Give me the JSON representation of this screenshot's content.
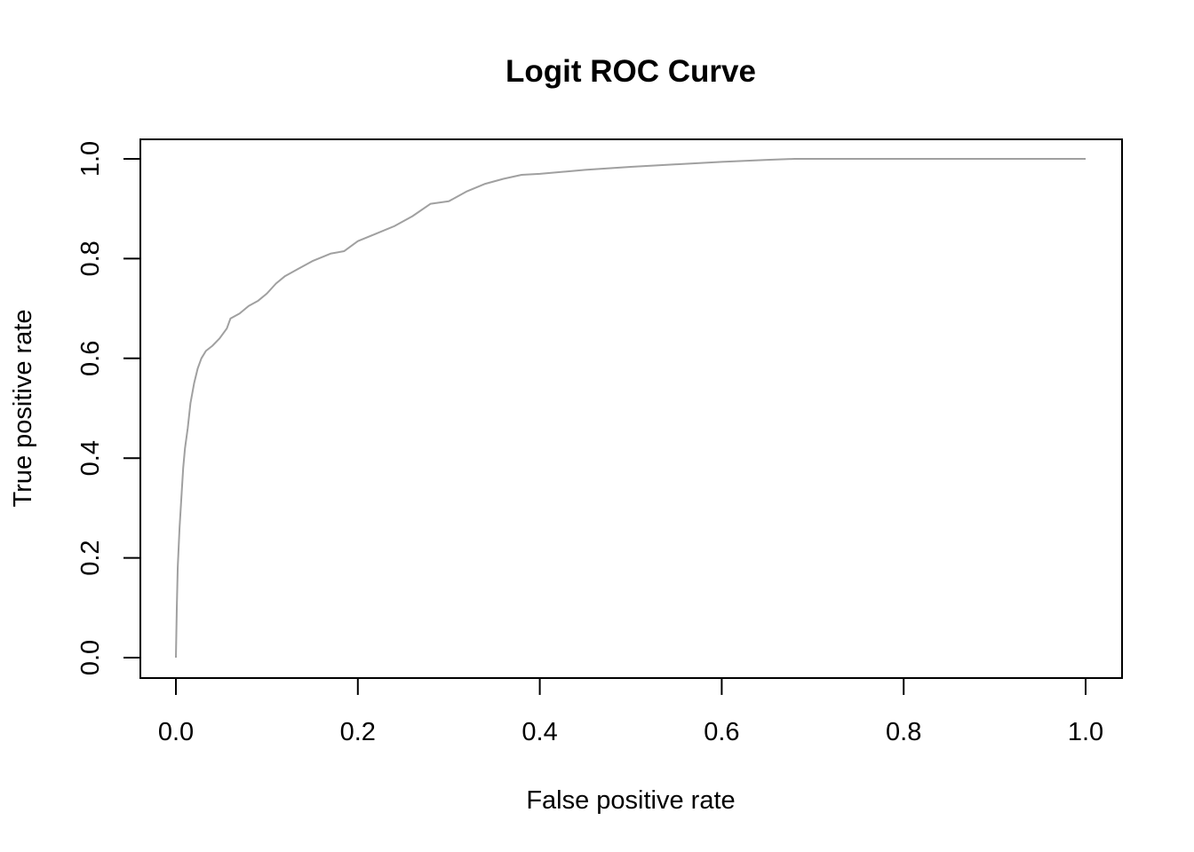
{
  "chart_data": {
    "type": "line",
    "title": "Logit ROC Curve",
    "xlabel": "False positive rate",
    "ylabel": "True positive rate",
    "xlim": [
      0,
      1
    ],
    "ylim": [
      0,
      1
    ],
    "x_ticks": [
      "0.0",
      "0.2",
      "0.4",
      "0.6",
      "0.8",
      "1.0"
    ],
    "y_ticks": [
      "0.0",
      "0.2",
      "0.4",
      "0.6",
      "0.8",
      "1.0"
    ],
    "grid": false,
    "series": [
      {
        "color": "#a0a0a0",
        "points": [
          [
            0.0,
            0.0
          ],
          [
            0.001,
            0.1
          ],
          [
            0.002,
            0.18
          ],
          [
            0.004,
            0.26
          ],
          [
            0.006,
            0.32
          ],
          [
            0.008,
            0.38
          ],
          [
            0.01,
            0.42
          ],
          [
            0.013,
            0.46
          ],
          [
            0.016,
            0.51
          ],
          [
            0.02,
            0.55
          ],
          [
            0.024,
            0.58
          ],
          [
            0.028,
            0.6
          ],
          [
            0.033,
            0.615
          ],
          [
            0.04,
            0.625
          ],
          [
            0.048,
            0.64
          ],
          [
            0.056,
            0.66
          ],
          [
            0.06,
            0.68
          ],
          [
            0.07,
            0.69
          ],
          [
            0.08,
            0.705
          ],
          [
            0.09,
            0.715
          ],
          [
            0.1,
            0.73
          ],
          [
            0.11,
            0.75
          ],
          [
            0.12,
            0.765
          ],
          [
            0.135,
            0.78
          ],
          [
            0.15,
            0.795
          ],
          [
            0.17,
            0.81
          ],
          [
            0.185,
            0.815
          ],
          [
            0.2,
            0.835
          ],
          [
            0.22,
            0.85
          ],
          [
            0.24,
            0.865
          ],
          [
            0.26,
            0.885
          ],
          [
            0.28,
            0.91
          ],
          [
            0.3,
            0.915
          ],
          [
            0.32,
            0.935
          ],
          [
            0.34,
            0.95
          ],
          [
            0.36,
            0.96
          ],
          [
            0.38,
            0.968
          ],
          [
            0.4,
            0.97
          ],
          [
            0.45,
            0.978
          ],
          [
            0.5,
            0.984
          ],
          [
            0.55,
            0.989
          ],
          [
            0.6,
            0.994
          ],
          [
            0.65,
            0.998
          ],
          [
            0.68,
            1.0
          ],
          [
            0.8,
            1.0
          ],
          [
            1.0,
            1.0
          ]
        ]
      }
    ]
  }
}
